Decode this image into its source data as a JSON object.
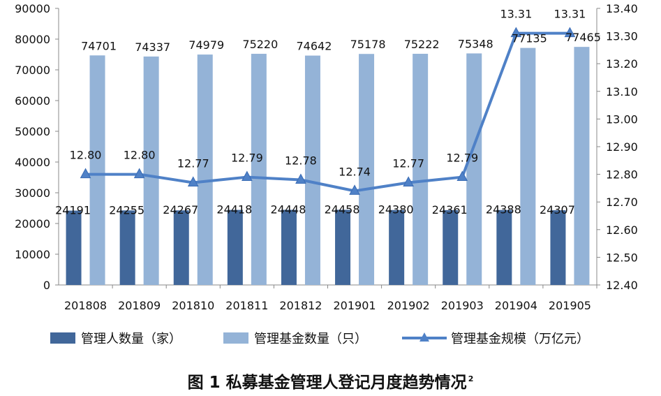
{
  "chart_data": {
    "type": "bar",
    "categories": [
      "201808",
      "201809",
      "201810",
      "201811",
      "201812",
      "201901",
      "201902",
      "201903",
      "201904",
      "201905"
    ],
    "series": [
      {
        "name": "管理人数量（家）",
        "type": "bar",
        "axis": "left",
        "color": "#41679A",
        "values": [
          24191,
          24255,
          24267,
          24418,
          24448,
          24458,
          24380,
          24361,
          24388,
          24307
        ]
      },
      {
        "name": "管理基金数量（只）",
        "type": "bar",
        "axis": "left",
        "color": "#94B3D7",
        "values": [
          74701,
          74337,
          74979,
          75220,
          74642,
          75178,
          75222,
          75348,
          77135,
          77465
        ]
      },
      {
        "name": "管理基金规模（万亿元）",
        "type": "line",
        "axis": "right",
        "color": "#4F81C7",
        "marker": "triangle",
        "values": [
          12.8,
          12.8,
          12.77,
          12.79,
          12.78,
          12.74,
          12.77,
          12.79,
          13.31,
          13.31
        ]
      }
    ],
    "label_text": {
      "bar1": [
        "24191",
        "24255",
        "24267",
        "24418",
        "24448",
        "24458",
        "24380",
        "24361",
        "24388",
        "24307"
      ],
      "bar2": [
        "74701",
        "74337",
        "74979",
        "75220",
        "74642",
        "75178",
        "75222",
        "75348",
        "77135",
        "77465"
      ],
      "line": [
        "12.80",
        "12.80",
        "12.77",
        "12.79",
        "12.78",
        "12.74",
        "12.77",
        "12.79",
        "13.31",
        "13.31"
      ]
    },
    "y_left": {
      "min": 0,
      "max": 90000,
      "ticks": [
        "0",
        "10000",
        "20000",
        "30000",
        "40000",
        "50000",
        "60000",
        "70000",
        "80000",
        "90000"
      ]
    },
    "y_right": {
      "min": 12.4,
      "max": 13.4,
      "ticks": [
        "12.40",
        "12.50",
        "12.60",
        "12.70",
        "12.80",
        "12.90",
        "13.00",
        "13.10",
        "13.20",
        "13.30",
        "13.40"
      ]
    },
    "grid": false,
    "legend_position": "bottom"
  },
  "caption": {
    "text": "图 1  私募基金管理人登记月度趋势情况",
    "note": "2"
  }
}
